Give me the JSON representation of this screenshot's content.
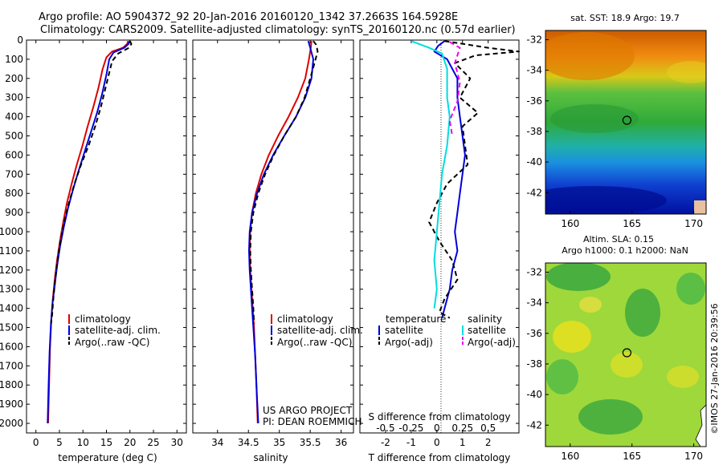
{
  "header": {
    "line1": "Argo profile: AO 5904372_92 20-Jan-2016 20160120_1342 37.2663S 164.5928E",
    "line2": "Climatology: CARS2009. Satellite-adjusted climatology: synTS_20160120.nc (0.57d earlier)"
  },
  "colors": {
    "climatology": "#dd0000",
    "satellite": "#0000dd",
    "argo": "#000000",
    "salinity_satellite": "#00dddd",
    "salinity_argo": "#ee00ee"
  },
  "chart_data": [
    {
      "type": "line",
      "id": "temperature",
      "xlabel": "temperature (deg C)",
      "xlim": [
        -2,
        32
      ],
      "xticks": [
        0,
        5,
        10,
        15,
        20,
        25,
        30
      ],
      "ylim": [
        2050,
        0
      ],
      "yticks": [
        0,
        100,
        200,
        300,
        400,
        500,
        600,
        700,
        800,
        900,
        1000,
        1100,
        1200,
        1300,
        1400,
        1500,
        1600,
        1700,
        1800,
        1900,
        2000
      ],
      "legend": [
        "climatology",
        "satellite-adj. clim.",
        "Argo(..raw -QC)"
      ],
      "series": [
        {
          "name": "climatology",
          "color": "#dd0000",
          "dash": "",
          "points": [
            [
              19.6,
              5
            ],
            [
              19.4,
              20
            ],
            [
              18.5,
              40
            ],
            [
              16.2,
              60
            ],
            [
              15.0,
              90
            ],
            [
              14.2,
              150
            ],
            [
              13.3,
              250
            ],
            [
              12.2,
              350
            ],
            [
              11.0,
              450
            ],
            [
              9.9,
              550
            ],
            [
              8.7,
              650
            ],
            [
              7.6,
              750
            ],
            [
              6.6,
              850
            ],
            [
              5.8,
              950
            ],
            [
              5.1,
              1050
            ],
            [
              4.5,
              1150
            ],
            [
              4.0,
              1250
            ],
            [
              3.6,
              1350
            ],
            [
              3.3,
              1450
            ],
            [
              3.0,
              1600
            ],
            [
              2.8,
              1800
            ],
            [
              2.6,
              2000
            ]
          ]
        },
        {
          "name": "satellite-adj. clim.",
          "color": "#0000dd",
          "dash": "",
          "points": [
            [
              19.9,
              5
            ],
            [
              19.7,
              20
            ],
            [
              18.8,
              40
            ],
            [
              16.5,
              65
            ],
            [
              15.6,
              100
            ],
            [
              15.0,
              180
            ],
            [
              14.1,
              280
            ],
            [
              13.0,
              380
            ],
            [
              11.7,
              480
            ],
            [
              10.4,
              580
            ],
            [
              9.1,
              680
            ],
            [
              7.9,
              780
            ],
            [
              6.8,
              880
            ],
            [
              5.9,
              980
            ],
            [
              5.1,
              1080
            ],
            [
              4.5,
              1180
            ],
            [
              4.0,
              1280
            ],
            [
              3.5,
              1380
            ],
            [
              3.2,
              1480
            ],
            [
              2.9,
              1630
            ],
            [
              2.7,
              1800
            ],
            [
              2.5,
              2000
            ]
          ]
        },
        {
          "name": "Argo(..raw -QC)",
          "color": "#000000",
          "dash": "6,4",
          "points": [
            [
              20.0,
              5
            ],
            [
              20.3,
              20
            ],
            [
              19.8,
              40
            ],
            [
              17.5,
              70
            ],
            [
              16.2,
              110
            ],
            [
              15.6,
              170
            ],
            [
              14.8,
              250
            ],
            [
              13.8,
              350
            ],
            [
              12.6,
              450
            ],
            [
              11.2,
              550
            ],
            [
              9.6,
              650
            ],
            [
              8.2,
              750
            ],
            [
              7.0,
              850
            ],
            [
              6.0,
              950
            ],
            [
              5.2,
              1050
            ],
            [
              4.6,
              1150
            ],
            [
              4.1,
              1250
            ],
            [
              3.7,
              1350
            ],
            [
              3.4,
              1450
            ],
            [
              3.2,
              1480
            ]
          ]
        }
      ]
    },
    {
      "type": "line",
      "id": "salinity",
      "xlabel": "salinity",
      "xlim": [
        33.6,
        36.2
      ],
      "xticks": [
        34,
        34.5,
        35,
        35.5,
        36
      ],
      "xtick_labels": [
        "34",
        "34.5",
        "35",
        "35.5",
        "36"
      ],
      "ylim": [
        2050,
        0
      ],
      "legend": [
        "climatology",
        "satellite-adj. clim.",
        "Argo(..raw -QC)"
      ],
      "credits": [
        "US ARGO PROJECT",
        "PI: DEAN ROEMMICH"
      ],
      "series": [
        {
          "name": "climatology",
          "color": "#dd0000",
          "dash": "",
          "points": [
            [
              35.52,
              5
            ],
            [
              35.51,
              40
            ],
            [
              35.48,
              100
            ],
            [
              35.42,
              200
            ],
            [
              35.3,
              300
            ],
            [
              35.15,
              400
            ],
            [
              34.98,
              500
            ],
            [
              34.83,
              600
            ],
            [
              34.71,
              700
            ],
            [
              34.62,
              800
            ],
            [
              34.56,
              900
            ],
            [
              34.53,
              1000
            ],
            [
              34.52,
              1100
            ],
            [
              34.53,
              1200
            ],
            [
              34.55,
              1300
            ],
            [
              34.57,
              1400
            ],
            [
              34.59,
              1500
            ],
            [
              34.61,
              1650
            ],
            [
              34.63,
              1800
            ],
            [
              34.65,
              2000
            ]
          ]
        },
        {
          "name": "satellite-adj. clim.",
          "color": "#0000dd",
          "dash": "",
          "points": [
            [
              35.47,
              5
            ],
            [
              35.5,
              40
            ],
            [
              35.55,
              100
            ],
            [
              35.52,
              200
            ],
            [
              35.42,
              300
            ],
            [
              35.27,
              400
            ],
            [
              35.08,
              500
            ],
            [
              34.9,
              600
            ],
            [
              34.75,
              700
            ],
            [
              34.64,
              800
            ],
            [
              34.56,
              900
            ],
            [
              34.52,
              1000
            ],
            [
              34.51,
              1100
            ],
            [
              34.52,
              1200
            ],
            [
              34.54,
              1300
            ],
            [
              34.56,
              1400
            ],
            [
              34.58,
              1500
            ],
            [
              34.61,
              1650
            ],
            [
              34.63,
              1800
            ],
            [
              34.66,
              2000
            ]
          ]
        },
        {
          "name": "Argo(..raw -QC)",
          "color": "#000000",
          "dash": "6,4",
          "points": [
            [
              35.55,
              5
            ],
            [
              35.6,
              25
            ],
            [
              35.62,
              60
            ],
            [
              35.57,
              120
            ],
            [
              35.5,
              200
            ],
            [
              35.41,
              300
            ],
            [
              35.27,
              400
            ],
            [
              35.08,
              500
            ],
            [
              34.91,
              600
            ],
            [
              34.77,
              700
            ],
            [
              34.66,
              800
            ],
            [
              34.58,
              900
            ],
            [
              34.54,
              1000
            ],
            [
              34.53,
              1100
            ],
            [
              34.54,
              1200
            ],
            [
              34.56,
              1300
            ],
            [
              34.58,
              1400
            ],
            [
              34.59,
              1480
            ]
          ]
        }
      ]
    },
    {
      "type": "line",
      "id": "difference",
      "xlabel": "T difference from climatology",
      "xlabel_top": "S difference from climatology",
      "xlim": [
        -3,
        3.2
      ],
      "xticks": [
        -2,
        -1,
        0,
        1,
        2
      ],
      "xtick_labels": [
        "-2",
        "-1",
        "0",
        "1",
        "2"
      ],
      "s_ticks_x": [
        -2,
        -1,
        0,
        1,
        2
      ],
      "s_tick_labels": [
        "-0.5",
        "-0.25",
        "0",
        "0.25",
        "0.5"
      ],
      "ylim": [
        2050,
        0
      ],
      "legend_groups": [
        {
          "title": "temperature",
          "entries": [
            "satellite",
            "Argo(-adj)"
          ]
        },
        {
          "title": "salinity",
          "entries": [
            "satellite",
            "Argo(-adj)"
          ]
        }
      ],
      "series": [
        {
          "name": "T satellite",
          "color": "#0000dd",
          "dash": "",
          "points": [
            [
              0.3,
              5
            ],
            [
              0.05,
              30
            ],
            [
              -0.1,
              60
            ],
            [
              0.4,
              100
            ],
            [
              0.8,
              200
            ],
            [
              0.8,
              300
            ],
            [
              0.9,
              400
            ],
            [
              1.0,
              500
            ],
            [
              1.1,
              600
            ],
            [
              1.0,
              700
            ],
            [
              0.9,
              800
            ],
            [
              0.8,
              900
            ],
            [
              0.7,
              1000
            ],
            [
              0.8,
              1100
            ],
            [
              0.6,
              1200
            ],
            [
              0.5,
              1300
            ],
            [
              0.3,
              1400
            ],
            [
              0.2,
              1450
            ]
          ]
        },
        {
          "name": "T Argo(-adj)",
          "color": "#000000",
          "dash": "6,4",
          "points": [
            [
              0.3,
              5
            ],
            [
              2.0,
              40
            ],
            [
              3.2,
              60
            ],
            [
              1.5,
              80
            ],
            [
              0.7,
              120
            ],
            [
              1.3,
              200
            ],
            [
              0.9,
              300
            ],
            [
              1.6,
              380
            ],
            [
              1.0,
              450
            ],
            [
              1.1,
              550
            ],
            [
              1.2,
              650
            ],
            [
              0.4,
              750
            ],
            [
              0.0,
              850
            ],
            [
              -0.3,
              950
            ],
            [
              0.1,
              1050
            ],
            [
              0.6,
              1150
            ],
            [
              0.8,
              1250
            ],
            [
              0.3,
              1350
            ],
            [
              0.1,
              1420
            ],
            [
              0.5,
              1450
            ]
          ]
        },
        {
          "name": "S satellite",
          "color": "#00dddd",
          "dash": "",
          "points": [
            [
              -1.0,
              5
            ],
            [
              -0.3,
              40
            ],
            [
              0.2,
              70
            ],
            [
              0.4,
              150
            ],
            [
              0.4,
              300
            ],
            [
              0.5,
              400
            ],
            [
              0.4,
              550
            ],
            [
              0.2,
              700
            ],
            [
              0.1,
              850
            ],
            [
              0.0,
              1000
            ],
            [
              -0.1,
              1150
            ],
            [
              0.0,
              1300
            ],
            [
              -0.1,
              1400
            ]
          ]
        },
        {
          "name": "S Argo(-adj)",
          "color": "#ee00ee",
          "dash": "6,4",
          "points": [
            [
              0.5,
              10
            ],
            [
              0.9,
              40
            ],
            [
              0.7,
              120
            ],
            [
              0.9,
              220
            ],
            [
              0.8,
              320
            ],
            [
              0.5,
              420
            ],
            [
              0.6,
              500
            ]
          ]
        }
      ]
    },
    {
      "type": "heatmap",
      "id": "sst-map",
      "title": "sat. SST: 18.9 Argo: 19.7",
      "xlim": [
        158,
        171
      ],
      "ylim": [
        -43.4,
        -31.4
      ],
      "xticks": [
        160,
        165,
        170
      ],
      "yticks": [
        -32,
        -34,
        -36,
        -38,
        -40,
        -42
      ],
      "marker": [
        164.59,
        -37.27
      ]
    },
    {
      "type": "heatmap",
      "id": "sla-map",
      "title_lines": [
        "Altim. SLA: 0.15",
        "Argo h1000: 0.1 h2000: NaN"
      ],
      "xlim": [
        158,
        171
      ],
      "ylim": [
        -43.4,
        -31.4
      ],
      "xticks": [
        160,
        165,
        170
      ],
      "yticks": [
        -32,
        -34,
        -36,
        -38,
        -40,
        -42
      ],
      "marker": [
        164.59,
        -37.27
      ]
    }
  ],
  "footer": {
    "credit": "©IMOS 27-Jan-2016 20:39:56"
  }
}
